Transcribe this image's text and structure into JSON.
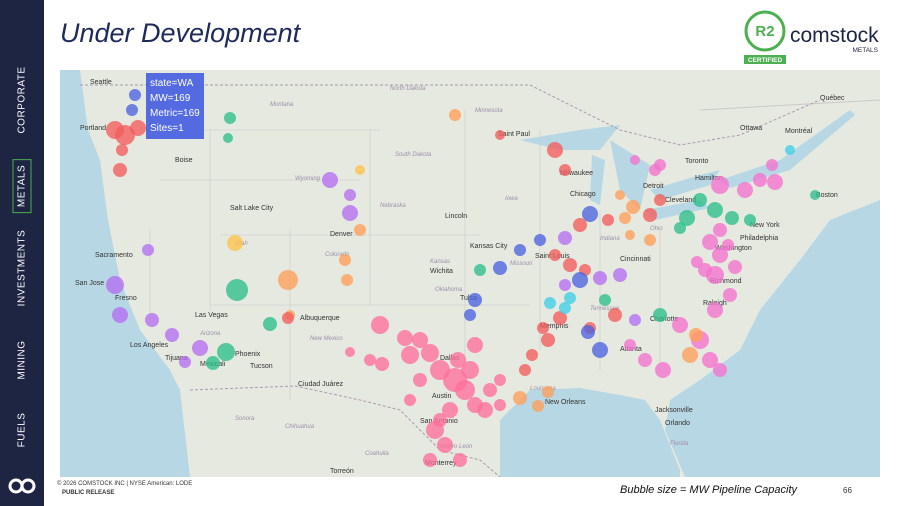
{
  "header": {
    "title": "Under Development",
    "logo": {
      "badge": "R2",
      "certified": "CERTIFIED",
      "name": "comstock",
      "sub": "METALS"
    }
  },
  "sidebar": {
    "items": [
      "CORPORATE",
      "METALS",
      "INVESTMENTS",
      "MINING",
      "FUELS"
    ]
  },
  "map": {
    "tooltip": [
      "state=WA",
      "MW=169",
      "Metric=169",
      "Sites=1"
    ],
    "labels": [
      "Seattle",
      "Portland",
      "Boise",
      "Salt Lake City",
      "Denver",
      "Lincoln",
      "Kansas City",
      "Wichita",
      "Sacramento",
      "San Jose",
      "Fresno",
      "Los Angeles",
      "Tijuana",
      "Mexicali",
      "Phoenix",
      "Tucson",
      "Albuquerque",
      "Ciudad Juárez",
      "Dallas",
      "Austin",
      "San Antonio",
      "Monterrey",
      "Torreón",
      "Saint Paul",
      "Milwaukee",
      "Chicago",
      "Saint Louis",
      "Tulsa",
      "Memphis",
      "New Orleans",
      "Atlanta",
      "Charlotte",
      "Raleigh",
      "Richmond",
      "Washington",
      "Philadelphia",
      "New York",
      "Boston",
      "Ottawa",
      "Montréal",
      "Québec",
      "Toronto",
      "Detroit",
      "Cleveland",
      "Hamilton",
      "Cincinnati",
      "Jacksonville",
      "Orlando",
      "Las Vegas",
      "Montana",
      "North Dakota",
      "South Dakota",
      "Minnesota",
      "Wyoming",
      "Nebraska",
      "Iowa",
      "Colorado",
      "Utah",
      "Kansas",
      "Missouri",
      "Oklahoma",
      "New Mexico",
      "Arizona",
      "Chihuahua",
      "Coahuila",
      "Sonora",
      "Nuevo León",
      "Tennessee",
      "Indiana",
      "Ohio",
      "Louisiana",
      "Florida"
    ]
  },
  "footer": {
    "copyright": "© 2026 COMSTOCK INC | NYSE American: LODE",
    "classification": "PUBLIC RELEASE",
    "caption": "Bubble size = MW Pipeline Capacity",
    "page": "66"
  }
}
